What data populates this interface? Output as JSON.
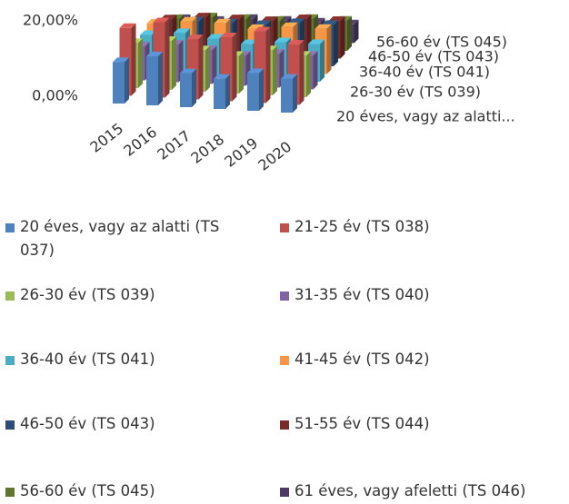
{
  "chart_data": {
    "type": "bar3d",
    "categories": [
      "2015",
      "2016",
      "2017",
      "2018",
      "2019",
      "2020"
    ],
    "ylim": [
      0,
      20
    ],
    "yticks": [
      {
        "value": 0,
        "label": "0,00%"
      },
      {
        "value": 20,
        "label": "20,00%"
      }
    ],
    "zlabels": [
      "20 éves, vagy az alatti...",
      "26-30 év (TS 039)",
      "36-40 év (TS 041)",
      "46-50 év (TS 043)",
      "56-60 év (TS 045)"
    ],
    "series": [
      {
        "name": "20 éves, vagy az alatti (TS 037)",
        "color": "#4f81bd",
        "values": [
          11,
          13,
          9,
          8,
          10,
          9
        ]
      },
      {
        "name": "21-25 év (TS 038)",
        "color": "#c0504d",
        "values": [
          18,
          20,
          16,
          17,
          19,
          16
        ]
      },
      {
        "name": "26-30 év (TS 039)",
        "color": "#9bbb59",
        "values": [
          12,
          13,
          11,
          10,
          12,
          11
        ]
      },
      {
        "name": "31-35 év (TS 040)",
        "color": "#8064a2",
        "values": [
          9,
          10,
          9,
          8,
          9,
          9
        ]
      },
      {
        "name": "36-40 év (TS 041)",
        "color": "#4bacc6",
        "values": [
          10,
          11,
          10,
          9,
          10,
          10
        ]
      },
      {
        "name": "41-45 év (TS 042)",
        "color": "#f79646",
        "values": [
          11,
          12,
          12,
          11,
          12,
          12
        ]
      },
      {
        "name": "46-50 év (TS 043)",
        "color": "#2c4d75",
        "values": [
          9,
          10,
          10,
          10,
          11,
          11
        ]
      },
      {
        "name": "51-55 év (TS 044)",
        "color": "#772c2a",
        "values": [
          8,
          9,
          9,
          9,
          10,
          10
        ]
      },
      {
        "name": "56-60 év (TS 045)",
        "color": "#5f7530",
        "values": [
          6,
          7,
          7,
          7,
          8,
          8
        ]
      },
      {
        "name": "61 éves, vagy afeletti (TS 046)",
        "color": "#4d3b62",
        "values": [
          4,
          4,
          5,
          5,
          5,
          5
        ]
      }
    ]
  }
}
